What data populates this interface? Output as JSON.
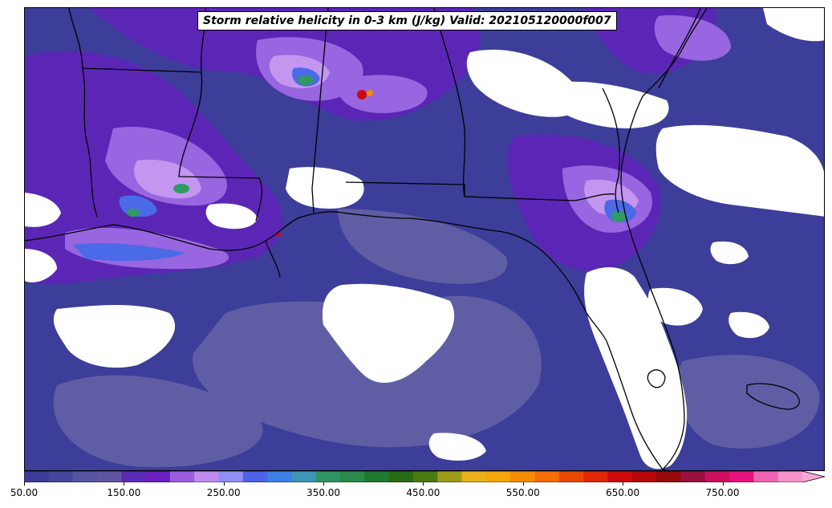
{
  "title": "Storm relative helicity in 0-3 km (J/kg) Valid: 202105120000f007",
  "colorbar": {
    "min": 50,
    "max": 830,
    "step": 20,
    "extend": "max",
    "colors": [
      "#3b3b99",
      "#46469e",
      "#5555a2",
      "#60569f",
      "#5a2bb4",
      "#6a1fc0",
      "#9b5ce0",
      "#c18aee",
      "#8f8ff5",
      "#4b64e6",
      "#3c80e6",
      "#3c96b4",
      "#2f9464",
      "#2a8a4a",
      "#1d7a30",
      "#2a6b12",
      "#4a7a12",
      "#9b9c18",
      "#e8b01a",
      "#f5a60a",
      "#f58c05",
      "#f56d05",
      "#e84800",
      "#e02808",
      "#cc0a0a",
      "#b40808",
      "#960a0a",
      "#9a1040",
      "#cc1060",
      "#e8127e",
      "#f064b4",
      "#f792cc"
    ],
    "extend_color": "#f7a6d6",
    "ticks": [
      "50.00",
      "150.00",
      "250.00",
      "350.00",
      "450.00",
      "550.00",
      "650.00",
      "750.00"
    ]
  },
  "map_colors": {
    "background_shade": "#3d3d9a",
    "pale_shade": "#5f5ea4",
    "violet_shade": "#5b26b6",
    "lavender_shade": "#9866e0",
    "light_purple_shade": "#c396f0",
    "blue_shade": "#4a6ae8",
    "green_shade": "#2f9a62",
    "no_data": "#ffffff",
    "border_line": "#000000"
  }
}
